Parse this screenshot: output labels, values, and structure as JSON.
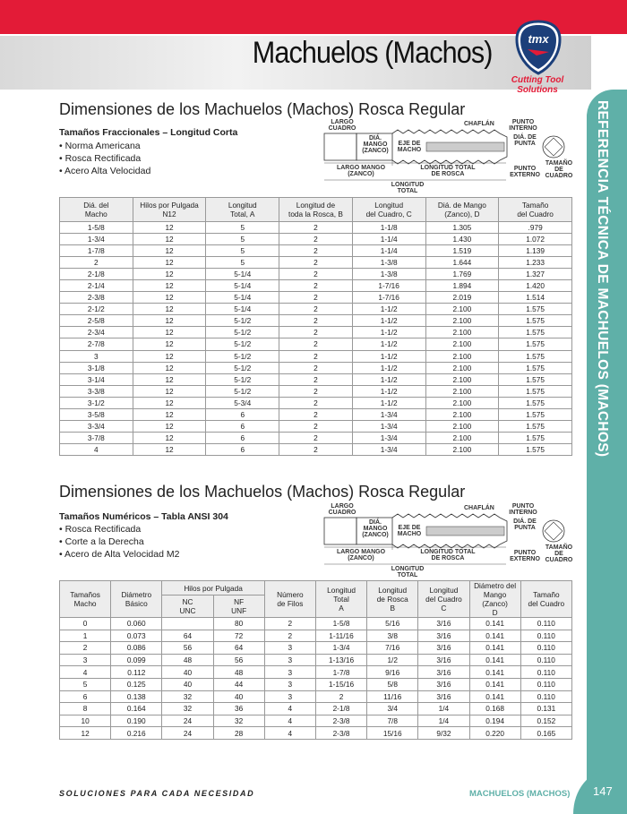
{
  "header": {
    "title": "Machuelos (Machos)",
    "logo_text": "tmx",
    "tagline_1": "Cutting Tool",
    "tagline_2": "Solutions",
    "side_label": "REFERENCIA TÉCNICA DE MACHUELOS (MACHOS)"
  },
  "colors": {
    "red": "#e31b37",
    "teal": "#5fb0a8"
  },
  "diagram": {
    "largo_cuadro": "LARGO CUADRO",
    "dia_mango": "DIÁ. MANGO (ZANCO)",
    "eje": "EJE DE MACHO",
    "chaflan": "CHAFLÁN",
    "punto_interno": "PUNTO INTERNO",
    "dia_punta": "DIÁ. DE PUNTA",
    "tamano_cuadro": "TAMAÑO DE CUADRO",
    "largo_mango": "LARGO MANGO",
    "zanco": "(ZANCO)",
    "longitud_total_rosca": "LONGITUD TOTAL",
    "de_rosca": "DE ROSCA",
    "longitud": "LONGITUD",
    "total": "TOTAL",
    "punto_externo": "PUNTO EXTERNO"
  },
  "section1": {
    "title": "Dimensiones de los Machuelos (Machos) Rosca Regular",
    "subtitle": "Tamaños Fraccionales – Longitud Corta",
    "bullets": [
      "• Norma Americana",
      "• Rosca Rectificada",
      "• Acero Alta Velocidad"
    ],
    "headers": [
      [
        "Diá. del",
        "Macho"
      ],
      [
        "Hilos por Pulgada",
        "N12"
      ],
      [
        "Longitud",
        "Total, A"
      ],
      [
        "Longitud de",
        "toda la Rosca, B"
      ],
      [
        "Longitud",
        "del Cuadro, C"
      ],
      [
        "Diá. de Mango",
        "(Zanco), D"
      ],
      [
        "Tamaño",
        "del Cuadro"
      ]
    ],
    "rows": [
      [
        "1-5/8",
        "12",
        "5",
        "2",
        "1-1/8",
        "1.305",
        ".979"
      ],
      [
        "1-3/4",
        "12",
        "5",
        "2",
        "1-1/4",
        "1.430",
        "1.072"
      ],
      [
        "1-7/8",
        "12",
        "5",
        "2",
        "1-1/4",
        "1.519",
        "1.139"
      ],
      [
        "2",
        "12",
        "5",
        "2",
        "1-3/8",
        "1.644",
        "1.233"
      ],
      [
        "2-1/8",
        "12",
        "5-1/4",
        "2",
        "1-3/8",
        "1.769",
        "1.327"
      ],
      [
        "2-1/4",
        "12",
        "5-1/4",
        "2",
        "1-7/16",
        "1.894",
        "1.420"
      ],
      [
        "2-3/8",
        "12",
        "5-1/4",
        "2",
        "1-7/16",
        "2.019",
        "1.514"
      ],
      [
        "2-1/2",
        "12",
        "5-1/4",
        "2",
        "1-1/2",
        "2.100",
        "1.575"
      ],
      [
        "2-5/8",
        "12",
        "5-1/2",
        "2",
        "1-1/2",
        "2.100",
        "1.575"
      ],
      [
        "2-3/4",
        "12",
        "5-1/2",
        "2",
        "1-1/2",
        "2.100",
        "1.575"
      ],
      [
        "2-7/8",
        "12",
        "5-1/2",
        "2",
        "1-1/2",
        "2.100",
        "1.575"
      ],
      [
        "3",
        "12",
        "5-1/2",
        "2",
        "1-1/2",
        "2.100",
        "1.575"
      ],
      [
        "3-1/8",
        "12",
        "5-1/2",
        "2",
        "1-1/2",
        "2.100",
        "1.575"
      ],
      [
        "3-1/4",
        "12",
        "5-1/2",
        "2",
        "1-1/2",
        "2.100",
        "1.575"
      ],
      [
        "3-3/8",
        "12",
        "5-1/2",
        "2",
        "1-1/2",
        "2.100",
        "1.575"
      ],
      [
        "3-1/2",
        "12",
        "5-3/4",
        "2",
        "1-1/2",
        "2.100",
        "1.575"
      ],
      [
        "3-5/8",
        "12",
        "6",
        "2",
        "1-3/4",
        "2.100",
        "1.575"
      ],
      [
        "3-3/4",
        "12",
        "6",
        "2",
        "1-3/4",
        "2.100",
        "1.575"
      ],
      [
        "3-7/8",
        "12",
        "6",
        "2",
        "1-3/4",
        "2.100",
        "1.575"
      ],
      [
        "4",
        "12",
        "6",
        "2",
        "1-3/4",
        "2.100",
        "1.575"
      ]
    ]
  },
  "section2": {
    "title": "Dimensiones de los Machuelos (Machos) Rosca Regular",
    "subtitle": "Tamaños Numéricos – Tabla ANSI 304",
    "bullets": [
      "• Rosca Rectificada",
      "• Corte a la Derecha",
      "• Acero de Alta Velocidad  M2"
    ],
    "group_header": "Hilos por Pulgada",
    "headers": {
      "tamanos": [
        "Tamaños",
        "Macho"
      ],
      "diametro": [
        "Diámetro",
        "Básico"
      ],
      "nc": [
        "NC",
        "UNC"
      ],
      "nf": [
        "NF",
        "UNF"
      ],
      "filos": [
        "Número",
        "de Filos"
      ],
      "total": [
        "Longitud",
        "Total",
        "A"
      ],
      "rosca": [
        "Longitud",
        "de Rosca",
        "B"
      ],
      "cuadro": [
        "Longitud",
        "del Cuadro",
        "C"
      ],
      "mango": [
        "Diámetro del",
        "Mango (Zanco)",
        "D"
      ],
      "tamano": [
        "Tamaño",
        "del Cuadro"
      ]
    },
    "rows": [
      [
        "0",
        "0.060",
        "",
        "80",
        "2",
        "1-5/8",
        "5/16",
        "3/16",
        "0.141",
        "0.110"
      ],
      [
        "1",
        "0.073",
        "64",
        "72",
        "2",
        "1-11/16",
        "3/8",
        "3/16",
        "0.141",
        "0.110"
      ],
      [
        "2",
        "0.086",
        "56",
        "64",
        "3",
        "1-3/4",
        "7/16",
        "3/16",
        "0.141",
        "0.110"
      ],
      [
        "3",
        "0.099",
        "48",
        "56",
        "3",
        "1-13/16",
        "1/2",
        "3/16",
        "0.141",
        "0.110"
      ],
      [
        "4",
        "0.112",
        "40",
        "48",
        "3",
        "1-7/8",
        "9/16",
        "3/16",
        "0.141",
        "0.110"
      ],
      [
        "5",
        "0.125",
        "40",
        "44",
        "3",
        "1-15/16",
        "5/8",
        "3/16",
        "0.141",
        "0.110"
      ],
      [
        "6",
        "0.138",
        "32",
        "40",
        "3",
        "2",
        "11/16",
        "3/16",
        "0.141",
        "0.110"
      ],
      [
        "8",
        "0.164",
        "32",
        "36",
        "4",
        "2-1/8",
        "3/4",
        "1/4",
        "0.168",
        "0.131"
      ],
      [
        "10",
        "0.190",
        "24",
        "32",
        "4",
        "2-3/8",
        "7/8",
        "1/4",
        "0.194",
        "0.152"
      ],
      [
        "12",
        "0.216",
        "24",
        "28",
        "4",
        "2-3/8",
        "15/16",
        "9/32",
        "0.220",
        "0.165"
      ]
    ]
  },
  "footer": {
    "slogan": "SOLUCIONES PARA CADA NECESIDAD",
    "section": "MACHUELOS (MACHOS)",
    "page": "147"
  }
}
